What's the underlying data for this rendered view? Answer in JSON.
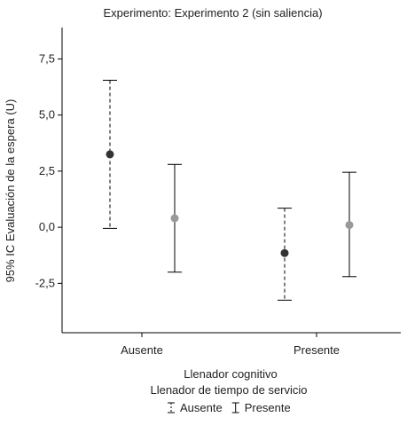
{
  "chart_data": {
    "type": "errorbar",
    "title": "Experimento: Experimento 2 (sin saliencia)",
    "xlabel": "Llenador cognitivo",
    "ylabel": "95% IC Evaluación de la espera (U)",
    "legend_title": "Llenador de tiempo de servicio",
    "legend_position": "bottom",
    "categories": [
      "Ausente",
      "Presente"
    ],
    "ylim": [
      -4.7,
      8.9
    ],
    "yticks": [
      -2.5,
      0.0,
      2.5,
      5.0,
      7.5
    ],
    "ytick_labels": [
      "-2,5",
      "0,0",
      "2,5",
      "5,0",
      "7,5"
    ],
    "grid": false,
    "series": [
      {
        "name": "Ausente",
        "line_style": "dashed",
        "color": "#333333",
        "mean": [
          3.25,
          -1.15
        ],
        "lower": [
          -0.05,
          -3.25
        ],
        "upper": [
          6.55,
          0.85
        ]
      },
      {
        "name": "Presente",
        "line_style": "solid",
        "color": "#999999",
        "mean": [
          0.4,
          0.1
        ],
        "lower": [
          -2.0,
          -2.2
        ],
        "upper": [
          2.8,
          2.45
        ]
      }
    ]
  }
}
